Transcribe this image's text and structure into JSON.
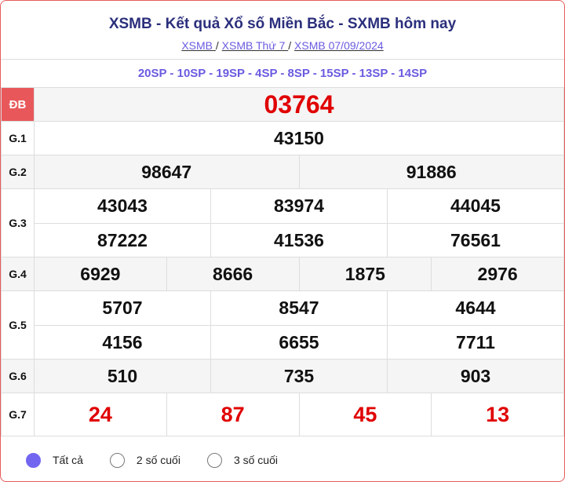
{
  "header": {
    "title": "XSMB - Kết quả Xổ số Miền Bắc - SXMB hôm nay",
    "breadcrumbs": [
      "XSMB ",
      "XSMB Thứ 7 ",
      "XSMB 07/09/2024"
    ],
    "separator": "/"
  },
  "codes": "20SP - 10SP - 19SP - 4SP - 8SP - 15SP - 13SP - 14SP",
  "prizes": {
    "db": {
      "label": "ĐB",
      "values": [
        "03764"
      ]
    },
    "g1": {
      "label": "G.1",
      "values": [
        "43150"
      ]
    },
    "g2": {
      "label": "G.2",
      "values": [
        "98647",
        "91886"
      ]
    },
    "g3": {
      "label": "G.3",
      "values": [
        "43043",
        "83974",
        "44045",
        "87222",
        "41536",
        "76561"
      ]
    },
    "g4": {
      "label": "G.4",
      "values": [
        "6929",
        "8666",
        "1875",
        "2976"
      ]
    },
    "g5": {
      "label": "G.5",
      "values": [
        "5707",
        "8547",
        "4644",
        "4156",
        "6655",
        "7711"
      ]
    },
    "g6": {
      "label": "G.6",
      "values": [
        "510",
        "735",
        "903"
      ]
    },
    "g7": {
      "label": "G.7",
      "values": [
        "24",
        "87",
        "45",
        "13"
      ]
    }
  },
  "filter": {
    "options": [
      "Tất cả",
      "2 số cuối",
      "3 số cuối"
    ],
    "selected": "Tất cả"
  },
  "colors": {
    "accent": "#6a5be0",
    "special": "#e00000",
    "db_badge": "#e8585b",
    "title": "#2b2f7c"
  }
}
